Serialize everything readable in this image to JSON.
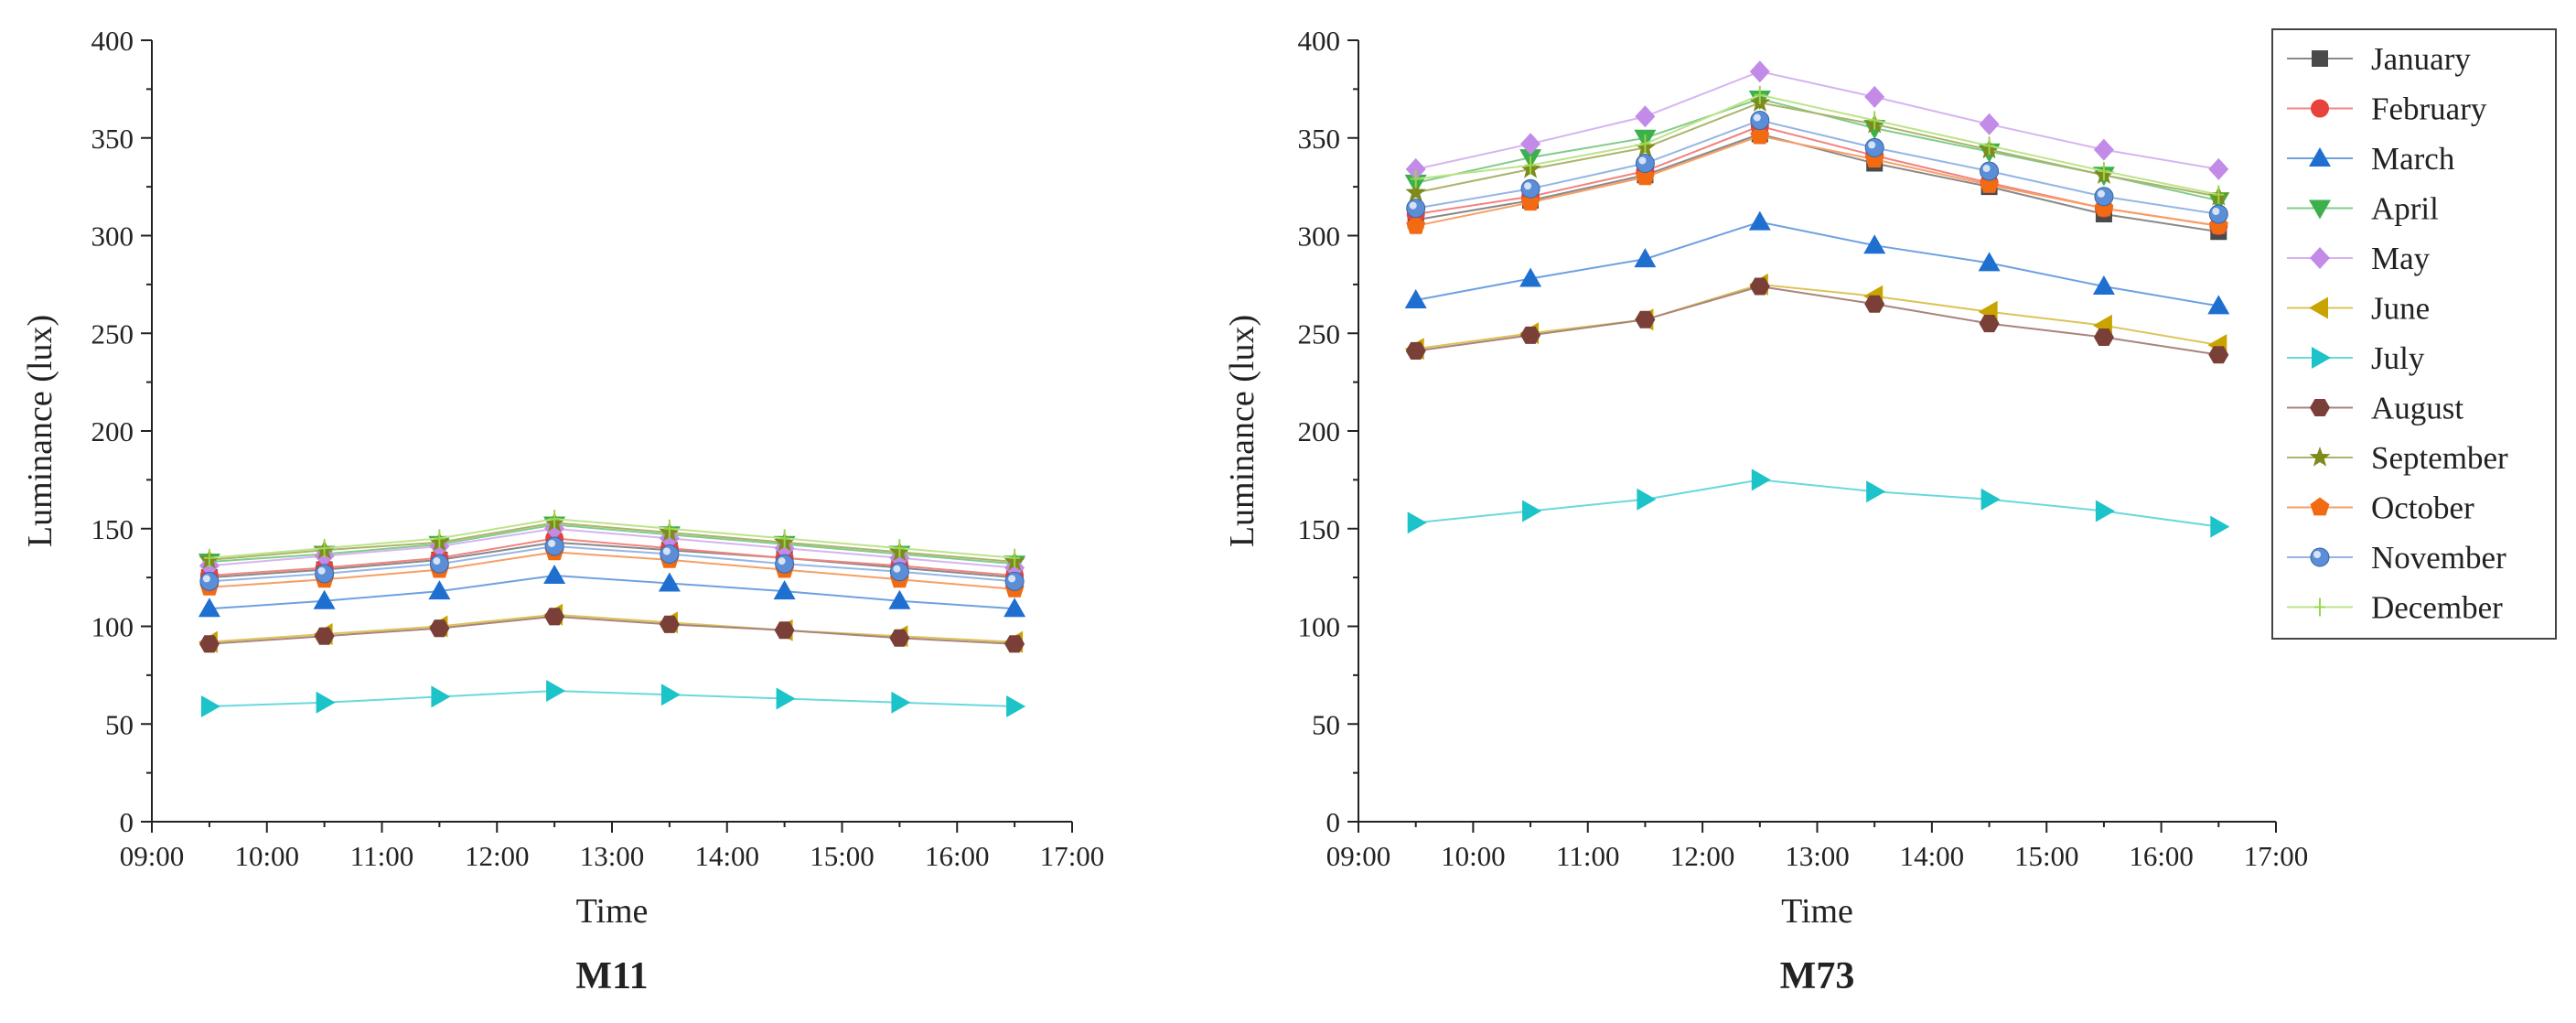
{
  "chart_data": [
    {
      "type": "line",
      "title": "M11",
      "xlabel": "Time",
      "ylabel": "Luminance (lux)",
      "x": [
        9.5,
        10.5,
        11.5,
        12.5,
        13.5,
        14.5,
        15.5,
        16.5
      ],
      "xlim": [
        9,
        17
      ],
      "ylim": [
        0,
        400
      ],
      "xticks": [
        "09:00",
        "10:00",
        "11:00",
        "12:00",
        "13:00",
        "14:00",
        "15:00",
        "16:00",
        "17:00"
      ],
      "yticks": [
        "0",
        "50",
        "100",
        "150",
        "200",
        "250",
        "300",
        "350",
        "400"
      ],
      "series": [
        {
          "name": "January",
          "values": [
            125,
            129,
            134,
            143,
            139,
            135,
            130,
            125
          ]
        },
        {
          "name": "February",
          "values": [
            126,
            130,
            135,
            145,
            140,
            135,
            131,
            126
          ]
        },
        {
          "name": "March",
          "values": [
            109,
            113,
            118,
            126,
            122,
            118,
            113,
            109
          ]
        },
        {
          "name": "April",
          "values": [
            133,
            137,
            142,
            152,
            147,
            142,
            137,
            132
          ]
        },
        {
          "name": "May",
          "values": [
            131,
            136,
            141,
            150,
            145,
            140,
            135,
            130
          ]
        },
        {
          "name": "June",
          "values": [
            92,
            96,
            100,
            106,
            102,
            98,
            95,
            92
          ]
        },
        {
          "name": "July",
          "values": [
            59,
            61,
            64,
            67,
            65,
            63,
            61,
            59
          ]
        },
        {
          "name": "August",
          "values": [
            91,
            95,
            99,
            105,
            101,
            98,
            94,
            91
          ]
        },
        {
          "name": "September",
          "values": [
            134,
            139,
            143,
            153,
            148,
            143,
            138,
            133
          ]
        },
        {
          "name": "October",
          "values": [
            120,
            124,
            129,
            138,
            134,
            129,
            124,
            119
          ]
        },
        {
          "name": "November",
          "values": [
            123,
            127,
            132,
            141,
            137,
            132,
            128,
            123
          ]
        },
        {
          "name": "December",
          "values": [
            135,
            140,
            145,
            155,
            150,
            145,
            140,
            135
          ]
        }
      ]
    },
    {
      "type": "line",
      "title": "M73",
      "xlabel": "Time",
      "ylabel": "Luminance (lux)",
      "x": [
        9.5,
        10.5,
        11.5,
        12.5,
        13.5,
        14.5,
        15.5,
        16.5
      ],
      "xlim": [
        9,
        17
      ],
      "ylim": [
        0,
        400
      ],
      "xticks": [
        "09:00",
        "10:00",
        "11:00",
        "12:00",
        "13:00",
        "14:00",
        "15:00",
        "16:00",
        "17:00"
      ],
      "yticks": [
        "0",
        "50",
        "100",
        "150",
        "200",
        "250",
        "300",
        "350",
        "400"
      ],
      "legend_position": "right",
      "series": [
        {
          "name": "January",
          "values": [
            308,
            318,
            331,
            352,
            337,
            325,
            311,
            302
          ]
        },
        {
          "name": "February",
          "values": [
            311,
            320,
            333,
            356,
            341,
            327,
            314,
            305
          ]
        },
        {
          "name": "March",
          "values": [
            267,
            278,
            288,
            307,
            295,
            286,
            274,
            264
          ]
        },
        {
          "name": "April",
          "values": [
            327,
            340,
            350,
            370,
            355,
            343,
            331,
            318
          ]
        },
        {
          "name": "May",
          "values": [
            334,
            347,
            361,
            384,
            371,
            357,
            344,
            334
          ]
        },
        {
          "name": "June",
          "values": [
            242,
            250,
            257,
            275,
            269,
            261,
            254,
            244
          ]
        },
        {
          "name": "July",
          "values": [
            153,
            159,
            165,
            175,
            169,
            165,
            159,
            151
          ]
        },
        {
          "name": "August",
          "values": [
            241,
            249,
            257,
            274,
            265,
            255,
            248,
            239
          ]
        },
        {
          "name": "September",
          "values": [
            322,
            334,
            345,
            368,
            357,
            344,
            331,
            320
          ]
        },
        {
          "name": "October",
          "values": [
            305,
            317,
            330,
            351,
            339,
            326,
            314,
            305
          ]
        },
        {
          "name": "November",
          "values": [
            314,
            324,
            337,
            359,
            345,
            333,
            320,
            311
          ]
        },
        {
          "name": "December",
          "values": [
            329,
            336,
            347,
            372,
            359,
            346,
            333,
            321
          ]
        }
      ]
    }
  ],
  "styles": {
    "January": {
      "color": "#4a4a4a",
      "marker": "square"
    },
    "February": {
      "color": "#e8423c",
      "marker": "circle"
    },
    "March": {
      "color": "#1f6fd1",
      "marker": "triangle-up"
    },
    "April": {
      "color": "#3cb04c",
      "marker": "triangle-down"
    },
    "May": {
      "color": "#c28be8",
      "marker": "diamond"
    },
    "June": {
      "color": "#c9a400",
      "marker": "triangle-left"
    },
    "July": {
      "color": "#1cc3c8",
      "marker": "triangle-right"
    },
    "August": {
      "color": "#7a4038",
      "marker": "hexagon"
    },
    "September": {
      "color": "#7f8a1c",
      "marker": "star"
    },
    "October": {
      "color": "#f26a12",
      "marker": "pentagon"
    },
    "November": {
      "color": "#5b8ed6",
      "marker": "sphere"
    },
    "December": {
      "color": "#98d64b",
      "marker": "plus"
    }
  }
}
